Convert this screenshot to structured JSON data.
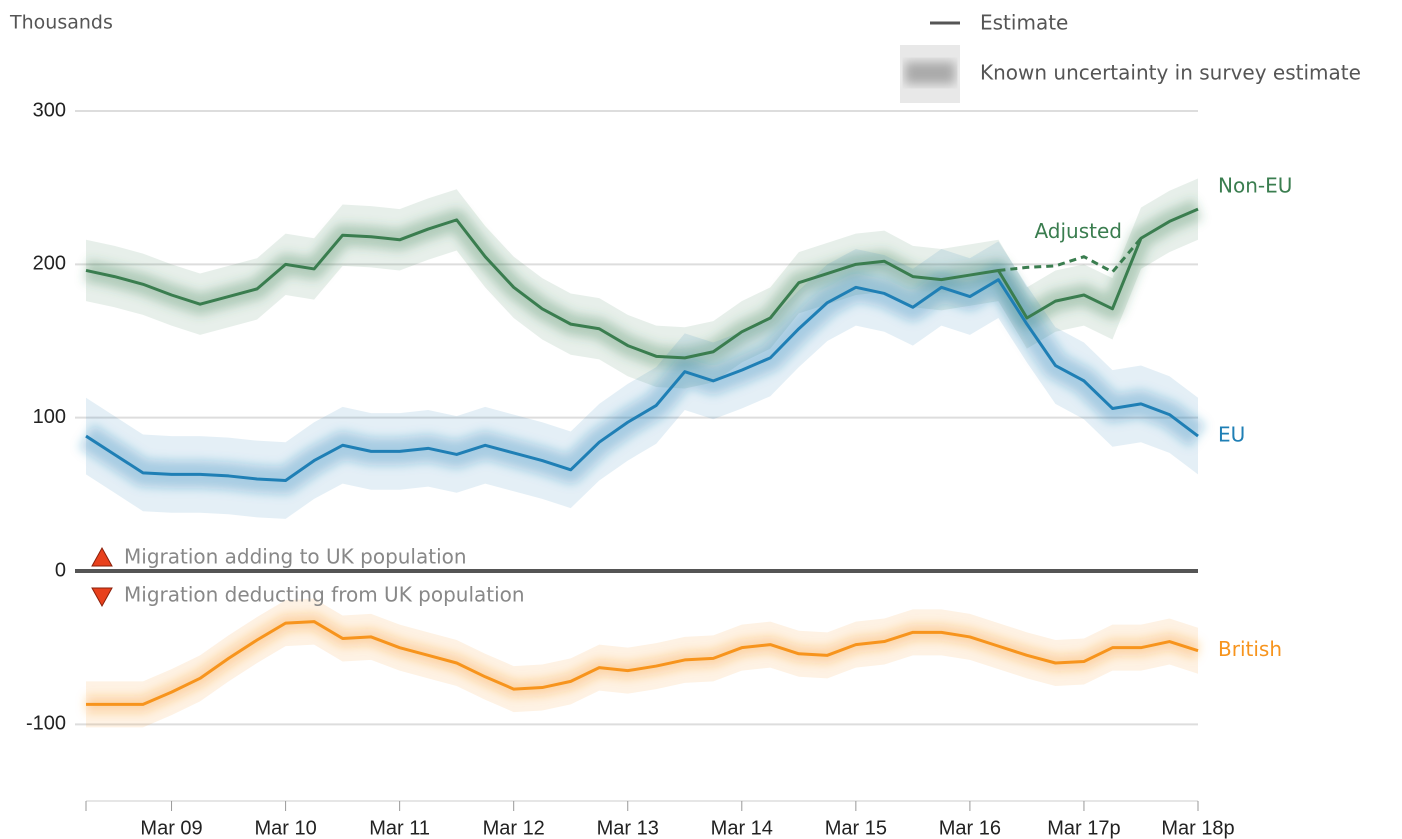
{
  "chart_data": {
    "type": "line",
    "y_label": "Thousands",
    "legend": {
      "line": "Estimate",
      "band": "Known uncertainty in survey estimate"
    },
    "annotations": [
      "Migration adding to UK population",
      "Migration deducting from UK population"
    ],
    "categories": [
      null,
      null,
      null,
      "Mar 09",
      null,
      null,
      null,
      "Mar 10",
      null,
      null,
      null,
      "Mar 11",
      null,
      null,
      null,
      "Mar 12",
      null,
      null,
      null,
      "Mar 13",
      null,
      null,
      null,
      "Mar 14",
      null,
      null,
      null,
      "Mar 15",
      null,
      null,
      null,
      "Mar 16",
      null,
      null,
      null,
      "Mar 17p",
      null,
      null,
      null,
      "Mar 18p"
    ],
    "series": [
      {
        "name": "Non-EU",
        "color": "#3a7d4f",
        "uncertainty": 20,
        "values": [
          196,
          192,
          187,
          180,
          174,
          179,
          184,
          200,
          197,
          219,
          218,
          216,
          223,
          229,
          205,
          185,
          171,
          161,
          158,
          147,
          140,
          139,
          143,
          156,
          165,
          188,
          194,
          200,
          202,
          192,
          190,
          193,
          196,
          165,
          176,
          180,
          171,
          217,
          228,
          236
        ]
      },
      {
        "name": "EU",
        "color": "#1f7fb5",
        "uncertainty": 25,
        "values": [
          88,
          76,
          64,
          63,
          63,
          62,
          60,
          59,
          72,
          82,
          78,
          78,
          80,
          76,
          82,
          77,
          72,
          66,
          84,
          97,
          108,
          130,
          124,
          131,
          139,
          158,
          175,
          185,
          181,
          172,
          185,
          179,
          190,
          161,
          134,
          124,
          106,
          109,
          102,
          88
        ]
      },
      {
        "name": "British",
        "color": "#f7941d",
        "uncertainty": 15,
        "values": [
          -87,
          -87,
          -87,
          -79,
          -70,
          -57,
          -45,
          -34,
          -33,
          -44,
          -43,
          -50,
          -55,
          -60,
          -69,
          -77,
          -76,
          -72,
          -63,
          -65,
          -62,
          -58,
          -57,
          -50,
          -48,
          -54,
          -55,
          -48,
          -46,
          -40,
          -40,
          -43,
          -49,
          -55,
          -60,
          -59,
          -50,
          -50,
          -46,
          -52
        ]
      },
      {
        "name": "Adjusted",
        "color": "#3a7d4f",
        "dashed": true,
        "values": [
          null,
          null,
          null,
          null,
          null,
          null,
          null,
          null,
          null,
          null,
          null,
          null,
          null,
          null,
          null,
          null,
          null,
          null,
          null,
          null,
          null,
          null,
          null,
          null,
          null,
          null,
          null,
          null,
          null,
          null,
          null,
          null,
          196,
          198,
          199,
          205,
          195,
          217,
          null,
          null
        ]
      }
    ],
    "ylim": [
      -150,
      300
    ],
    "yticks": [
      -100,
      0,
      100,
      200,
      300
    ],
    "grid": true
  }
}
